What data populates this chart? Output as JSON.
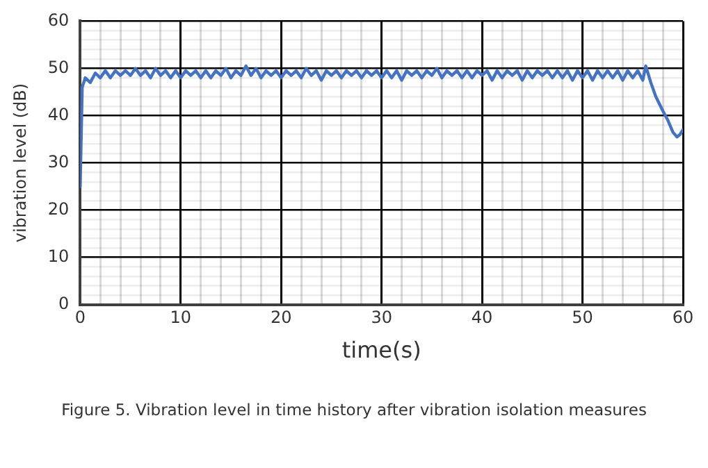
{
  "chart_data": {
    "type": "line",
    "xlabel": "time(s)",
    "ylabel": "vibration level (dB)",
    "annotations": [
      "Figure 5. Vibration level in time history after vibration isolation measures"
    ],
    "series": [
      {
        "color": "#4472c4",
        "x": [
          0,
          0.2,
          0.5,
          1,
          1.5,
          2,
          2.5,
          3,
          3.5,
          4,
          4.5,
          5,
          5.5,
          6,
          6.5,
          7,
          7.5,
          8,
          8.5,
          9,
          9.5,
          10,
          10.5,
          11,
          11.5,
          12,
          12.5,
          13,
          13.5,
          14,
          14.5,
          15,
          15.5,
          16,
          16.5,
          17,
          17.5,
          18,
          18.5,
          19,
          19.5,
          20,
          20.5,
          21,
          21.5,
          22,
          22.5,
          23,
          23.5,
          24,
          24.5,
          25,
          25.5,
          26,
          26.5,
          27,
          27.5,
          28,
          28.5,
          29,
          29.5,
          30,
          30.5,
          31,
          31.5,
          32,
          32.5,
          33,
          33.5,
          34,
          34.5,
          35,
          35.5,
          36,
          36.5,
          37,
          37.5,
          38,
          38.5,
          39,
          39.5,
          40,
          40.5,
          41,
          41.5,
          42,
          42.5,
          43,
          43.5,
          44,
          44.5,
          45,
          45.5,
          46,
          46.5,
          47,
          47.5,
          48,
          48.5,
          49,
          49.5,
          50,
          50.5,
          51,
          51.5,
          52,
          52.5,
          53,
          53.5,
          54,
          54.5,
          55,
          55.5,
          56,
          56.3,
          56.8,
          57.3,
          58,
          58.5,
          59,
          59.4,
          59.7,
          60
        ],
        "values": [
          25,
          46,
          48,
          47,
          49,
          48,
          49.5,
          48,
          49.5,
          48.5,
          49.5,
          48.5,
          50,
          48.5,
          49.5,
          48,
          50,
          48.5,
          49.5,
          48,
          49.5,
          48,
          49.5,
          48.5,
          49.5,
          48,
          49.5,
          48,
          49.5,
          48.5,
          50,
          48,
          49.5,
          48.5,
          50.5,
          48.5,
          50,
          48,
          49.5,
          48.5,
          49.5,
          48,
          49.5,
          48.5,
          49.5,
          48,
          50,
          48.5,
          49.5,
          47.5,
          49.5,
          48.5,
          49.5,
          48,
          49.5,
          48.5,
          49.5,
          48,
          49.5,
          48.5,
          49.5,
          48,
          49.5,
          48,
          49.5,
          47.5,
          49.5,
          48.5,
          49.5,
          48,
          49.5,
          48.5,
          50,
          48,
          49.5,
          48.5,
          49.5,
          48,
          49.5,
          48,
          49.5,
          48.5,
          49.5,
          47.5,
          49.5,
          48,
          49.5,
          48.5,
          49.5,
          47.5,
          49.5,
          48,
          49.5,
          48.5,
          49.5,
          48,
          49.5,
          48,
          49.5,
          47.5,
          49.5,
          48,
          49.5,
          47.5,
          49.5,
          48,
          49.5,
          48,
          49.5,
          47.5,
          49.5,
          48,
          49.5,
          47.5,
          50.5,
          47,
          44,
          41,
          39,
          36.5,
          35.5,
          36,
          37
        ]
      }
    ],
    "xlim": [
      0,
      60
    ],
    "ylim": [
      0,
      60
    ],
    "xticks": [
      0,
      {
        "value": 2,
        "label": null
      },
      {
        "value": 4,
        "label": null
      },
      {
        "value": 6,
        "label": null
      },
      {
        "value": 8,
        "label": null
      },
      10,
      {
        "value": 12,
        "label": null
      },
      {
        "value": 14,
        "label": null
      },
      {
        "value": 16,
        "label": null
      },
      {
        "value": 18,
        "label": null
      },
      20,
      {
        "value": 22,
        "label": null
      },
      {
        "value": 24,
        "label": null
      },
      {
        "value": 26,
        "label": null
      },
      {
        "value": 28,
        "label": null
      },
      30,
      {
        "value": 32,
        "label": null
      },
      {
        "value": 34,
        "label": null
      },
      {
        "value": 36,
        "label": null
      },
      {
        "value": 38,
        "label": null
      },
      40,
      {
        "value": 42,
        "label": null
      },
      {
        "value": 44,
        "label": null
      },
      {
        "value": 46,
        "label": null
      },
      {
        "value": 48,
        "label": null
      },
      50,
      {
        "value": 52,
        "label": null
      },
      {
        "value": 54,
        "label": null
      },
      {
        "value": 56,
        "label": null
      },
      {
        "value": 58,
        "label": null
      },
      60
    ],
    "yticks": [
      0,
      {
        "value": 2,
        "label": null
      },
      {
        "value": 4,
        "label": null
      },
      {
        "value": 6,
        "label": null
      },
      {
        "value": 8,
        "label": null
      },
      10,
      {
        "value": 12,
        "label": null
      },
      {
        "value": 14,
        "label": null
      },
      {
        "value": 16,
        "label": null
      },
      {
        "value": 18,
        "label": null
      },
      20,
      {
        "value": 22,
        "label": null
      },
      {
        "value": 24,
        "label": null
      },
      {
        "value": 26,
        "label": null
      },
      {
        "value": 28,
        "label": null
      },
      30,
      {
        "value": 32,
        "label": null
      },
      {
        "value": 34,
        "label": null
      },
      {
        "value": 36,
        "label": null
      },
      {
        "value": 38,
        "label": null
      },
      40,
      {
        "value": 42,
        "label": null
      },
      {
        "value": 44,
        "label": null
      },
      {
        "value": 46,
        "label": null
      },
      {
        "value": 48,
        "label": null
      },
      50,
      {
        "value": 52,
        "label": null
      },
      {
        "value": 54,
        "label": null
      },
      {
        "value": 56,
        "label": null
      },
      {
        "value": 58,
        "label": null
      },
      60
    ],
    "grid": true,
    "legend": false,
    "marker": "none",
    "line_style": "solid"
  }
}
